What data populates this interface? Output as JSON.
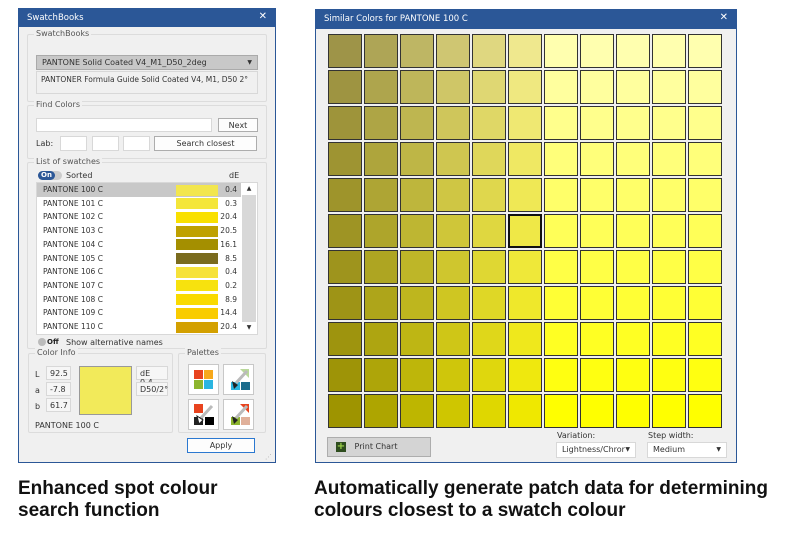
{
  "left_window": {
    "title": "SwatchBooks",
    "swatchbooks": {
      "legend": "SwatchBooks",
      "selected": "PANTONE Solid Coated V4_M1_D50_2deg",
      "description": "PANTONER Formula Guide Solid Coated V4, M1, D50 2°"
    },
    "find": {
      "legend": "Find Colors",
      "search_value": "",
      "next_label": "Next",
      "lab_label": "Lab:",
      "lab_values": [
        "",
        "",
        ""
      ],
      "search_closest_label": "Search closest"
    },
    "list": {
      "legend": "List of swatches",
      "sorted_toggle": "On",
      "sorted_label": "Sorted",
      "de_header": "dE",
      "items": [
        {
          "name": "PANTONE 100 C",
          "color": "#f2e64e",
          "de": "0.4",
          "selected": true
        },
        {
          "name": "PANTONE 101 C",
          "color": "#f4e63a",
          "de": "0.3"
        },
        {
          "name": "PANTONE 102 C",
          "color": "#f9e000",
          "de": "20.4"
        },
        {
          "name": "PANTONE 103 C",
          "color": "#bfa100",
          "de": "20.5"
        },
        {
          "name": "PANTONE 104 C",
          "color": "#a48f00",
          "de": "16.1"
        },
        {
          "name": "PANTONE 105 C",
          "color": "#7a6b1e",
          "de": "8.5"
        },
        {
          "name": "PANTONE 106 C",
          "color": "#f6e23a",
          "de": "0.4"
        },
        {
          "name": "PANTONE 107 C",
          "color": "#f7e20e",
          "de": "0.2"
        },
        {
          "name": "PANTONE 108 C",
          "color": "#f9da00",
          "de": "8.9"
        },
        {
          "name": "PANTONE 109 C",
          "color": "#f9cc00",
          "de": "14.4"
        },
        {
          "name": "PANTONE 110 C",
          "color": "#d3a000",
          "de": "20.4"
        }
      ],
      "alt_names_toggle": "Off",
      "alt_names_label": "Show alternative names"
    },
    "color_info": {
      "legend": "Color Info",
      "L_label": "L",
      "L": "92.5",
      "a_label": "a",
      "a": "-7.8",
      "b_label": "b",
      "b": "61.7",
      "de": "dE 0.4",
      "illuminant": "D50/2°",
      "name": "PANTONE 100 C",
      "swatch": "#f2ea5a"
    },
    "palettes": {
      "legend": "Palettes",
      "icons": [
        "palette-grid-icon",
        "palette-brush-cyan-icon",
        "palette-brush-black-icon",
        "palette-brush-green-icon"
      ]
    },
    "apply_label": "Apply"
  },
  "right_window": {
    "title": "Similar Colors for PANTONE 100 C",
    "grid": {
      "rows": 11,
      "cols": 11,
      "selected_row": 5,
      "selected_col": 5
    },
    "print_label": "Print Chart",
    "variation_label": "Variation:",
    "variation_value": "Lightness/Chror",
    "step_label": "Step width:",
    "step_value": "Medium"
  },
  "captions": {
    "left": "Enhanced spot colour search function",
    "right": "Automatically generate patch data for determining colours closest to a swatch colour"
  },
  "colors": {
    "titlebar": "#2b5797",
    "selection": "#c8c8c8"
  }
}
